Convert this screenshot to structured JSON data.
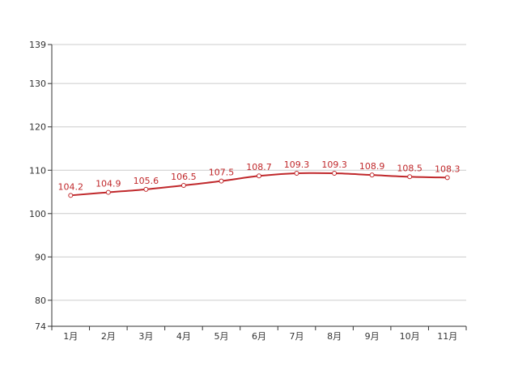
{
  "chart_data": {
    "type": "line",
    "categories": [
      "1月",
      "2月",
      "3月",
      "4月",
      "5月",
      "6月",
      "7月",
      "8月",
      "9月",
      "10月",
      "11月"
    ],
    "series": [
      {
        "values": [
          104.2,
          104.9,
          105.6,
          106.5,
          107.5,
          108.7,
          109.3,
          109.3,
          108.9,
          108.5,
          108.3
        ]
      }
    ],
    "data_labels": [
      "104.2",
      "104.9",
      "105.6",
      "106.5",
      "107.5",
      "108.7",
      "109.3",
      "109.3",
      "108.9",
      "108.5",
      "108.3"
    ],
    "ylim": [
      74,
      139
    ],
    "y_ticks": [
      74,
      80,
      90,
      100,
      110,
      120,
      130,
      139
    ],
    "y_tick_labels": [
      "74",
      "80",
      "90",
      "100",
      "110",
      "120",
      "130",
      "139"
    ],
    "grid": true,
    "line_color": "#c0282b",
    "grid_color": "#cccccc",
    "axis_color": "#333333"
  }
}
